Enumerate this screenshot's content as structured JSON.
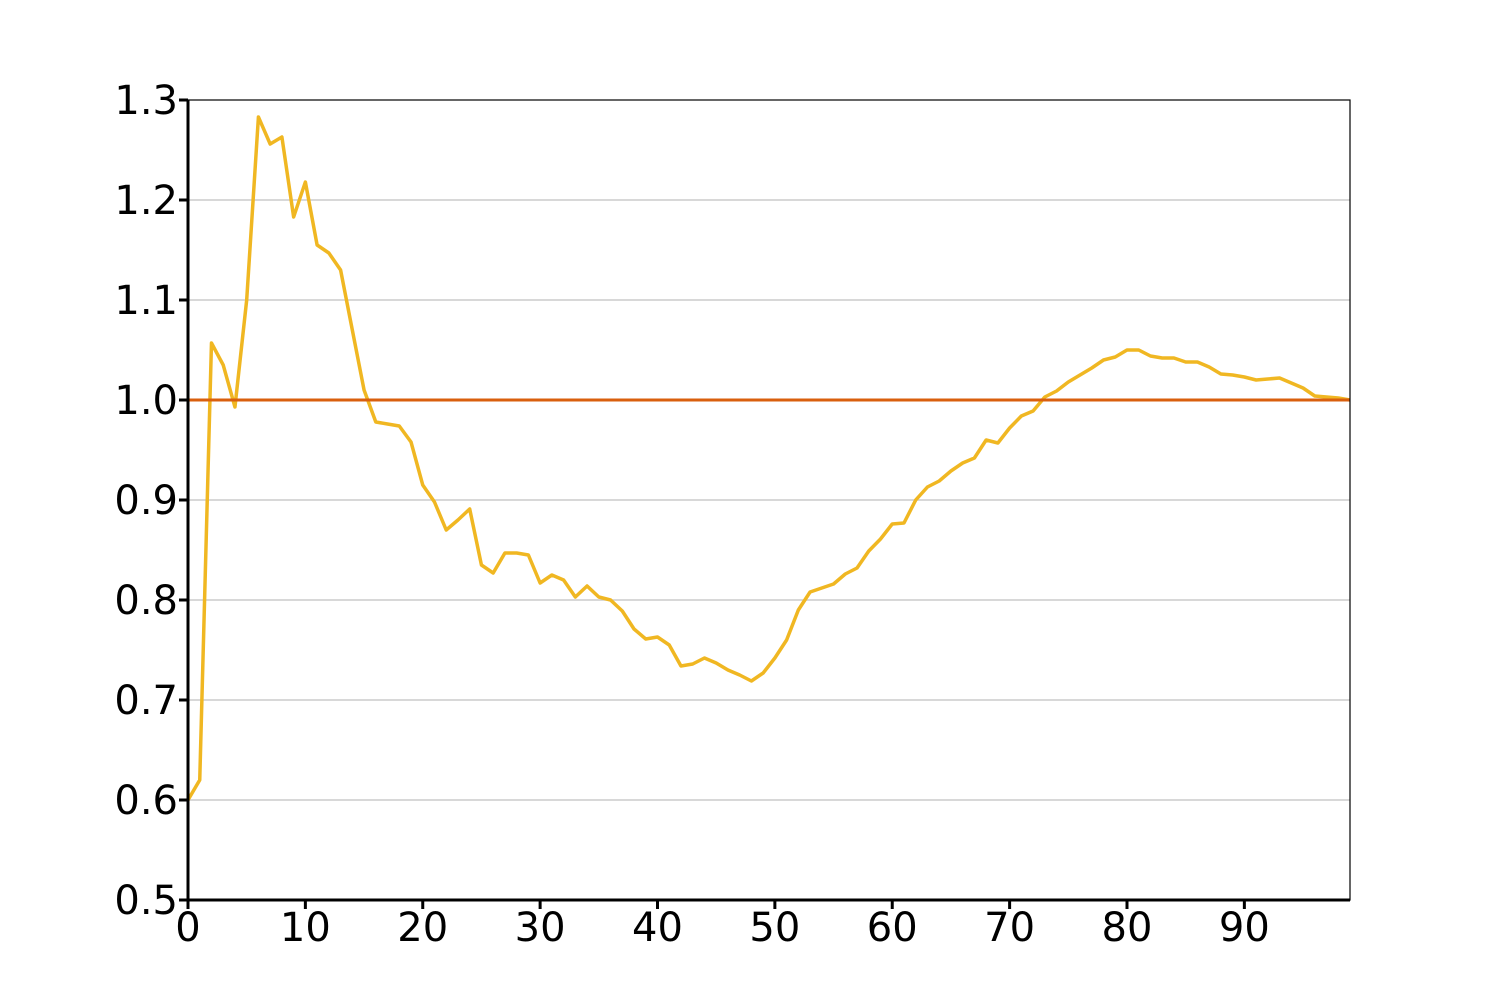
{
  "chart_data": {
    "type": "line",
    "title": "",
    "xlabel": "",
    "ylabel": "",
    "xlim": [
      0,
      99
    ],
    "ylim": [
      0.5,
      1.3
    ],
    "grid": {
      "y": true,
      "x": false
    },
    "legend": "none",
    "x_ticks": [
      0,
      10,
      20,
      30,
      40,
      50,
      60,
      70,
      80,
      90
    ],
    "x_tick_labels": [
      "0",
      "10",
      "20",
      "30",
      "40",
      "50",
      "60",
      "70",
      "80",
      "90"
    ],
    "y_ticks": [
      0.5,
      0.6,
      0.7,
      0.8,
      0.9,
      1.0,
      1.1,
      1.2,
      1.3
    ],
    "y_tick_labels": [
      "0.5",
      "0.6",
      "0.7",
      "0.8",
      "0.9",
      "1.0",
      "1.1",
      "1.2",
      "1.3"
    ],
    "series": [
      {
        "color": "#f0b722",
        "x": [
          0,
          1,
          2,
          3,
          4,
          5,
          6,
          7,
          8,
          9,
          10,
          11,
          12,
          13,
          14,
          15,
          16,
          17,
          18,
          19,
          20,
          21,
          22,
          23,
          24,
          25,
          26,
          27,
          28,
          29,
          30,
          31,
          32,
          33,
          34,
          35,
          36,
          37,
          38,
          39,
          40,
          41,
          42,
          43,
          44,
          45,
          46,
          47,
          48,
          49,
          50,
          51,
          52,
          53,
          54,
          55,
          56,
          57,
          58,
          59,
          60,
          61,
          62,
          63,
          64,
          65,
          66,
          67,
          68,
          69,
          70,
          71,
          72,
          73,
          74,
          75,
          76,
          77,
          78,
          79,
          80,
          81,
          82,
          83,
          84,
          85,
          86,
          87,
          88,
          89,
          90,
          91,
          92,
          93,
          94,
          95,
          96,
          97,
          98,
          99
        ],
        "values": [
          0.6,
          0.62,
          1.057,
          1.035,
          0.993,
          1.1,
          1.283,
          1.256,
          1.263,
          1.183,
          1.218,
          1.155,
          1.147,
          1.13,
          1.07,
          1.01,
          0.978,
          0.976,
          0.974,
          0.958,
          0.915,
          0.898,
          0.87,
          0.88,
          0.891,
          0.835,
          0.827,
          0.847,
          0.847,
          0.845,
          0.817,
          0.825,
          0.82,
          0.803,
          0.814,
          0.803,
          0.8,
          0.789,
          0.771,
          0.761,
          0.763,
          0.755,
          0.734,
          0.736,
          0.742,
          0.737,
          0.73,
          0.725,
          0.719,
          0.727,
          0.742,
          0.76,
          0.79,
          0.808,
          0.812,
          0.816,
          0.826,
          0.832,
          0.849,
          0.861,
          0.876,
          0.877,
          0.9,
          0.913,
          0.919,
          0.929,
          0.937,
          0.942,
          0.96,
          0.957,
          0.972,
          0.984,
          0.989,
          1.003,
          1.009,
          1.018,
          1.025,
          1.032,
          1.04,
          1.043,
          1.05,
          1.05,
          1.044,
          1.042,
          1.042,
          1.038,
          1.038,
          1.033,
          1.026,
          1.025,
          1.023,
          1.02,
          1.021,
          1.022,
          1.017,
          1.012,
          1.004,
          1.003,
          1.002,
          1.0
        ]
      },
      {
        "color": "#d95f0e",
        "x": [
          0,
          99
        ],
        "values": [
          1.0,
          1.0
        ]
      }
    ]
  }
}
